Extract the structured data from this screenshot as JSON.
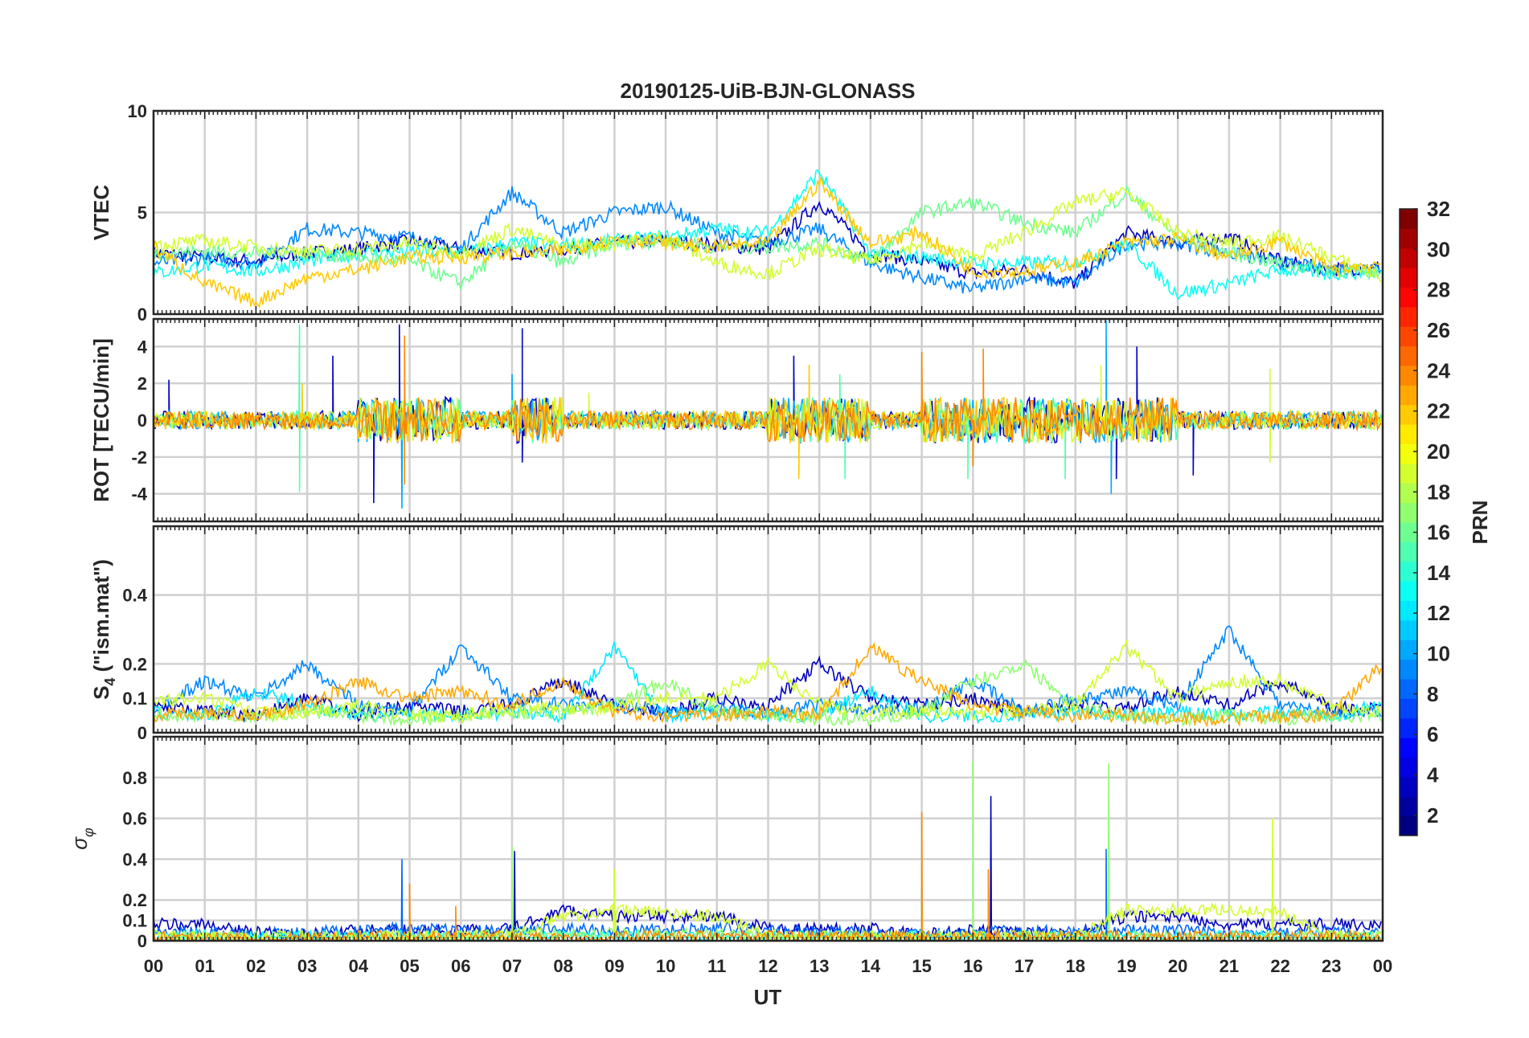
{
  "chart_data": {
    "type": "line",
    "title": "20190125-UiB-BJN-GLONASS",
    "xlabel": "UT",
    "x_ticks": [
      "00",
      "01",
      "02",
      "03",
      "04",
      "05",
      "06",
      "07",
      "08",
      "09",
      "10",
      "11",
      "12",
      "13",
      "14",
      "15",
      "16",
      "17",
      "18",
      "19",
      "20",
      "21",
      "22",
      "23",
      "00"
    ],
    "xlim": [
      0,
      24
    ],
    "grid": true,
    "colorbar": {
      "label": "PRN",
      "range": [
        1,
        32
      ],
      "ticks": [
        "2",
        "4",
        "6",
        "8",
        "10",
        "12",
        "14",
        "16",
        "18",
        "20",
        "22",
        "24",
        "26",
        "28",
        "30",
        "32"
      ],
      "colormap": "jet",
      "placement": "right"
    },
    "panels": [
      {
        "ylabel": "VTEC",
        "ylim": [
          0,
          10
        ],
        "yticks": [
          0,
          5,
          10
        ],
        "ytick_labels": [
          "0",
          "5",
          "10"
        ],
        "noise": 0.35,
        "series": [
          {
            "prn": 3,
            "values": [
              3,
              2.8,
              2.6,
              3,
              3.2,
              3.6,
              3.2,
              3,
              3.2,
              3.5,
              3.6,
              3.4,
              3.2,
              5.5,
              3,
              2.6,
              2,
              2.2,
              1.5,
              4,
              3.5,
              3.8,
              2.6,
              2.2,
              2.3
            ]
          },
          {
            "prn": 9,
            "values": [
              2.5,
              2.8,
              2.5,
              4.2,
              4,
              3.8,
              3.2,
              6,
              4,
              5,
              5.3,
              4,
              3.5,
              4.2,
              2.5,
              1.8,
              1.2,
              1.8,
              1.5,
              3.5,
              3.5,
              3,
              2.5,
              2.2,
              2.4
            ]
          },
          {
            "prn": 13,
            "values": [
              2,
              2.4,
              2.1,
              2.6,
              3,
              3.1,
              3,
              3.5,
              3.4,
              3.6,
              3.8,
              4.2,
              4,
              7,
              3,
              2.8,
              2.5,
              2.5,
              2.6,
              3.5,
              1,
              1.5,
              2.2,
              2,
              2.1
            ]
          },
          {
            "prn": 16,
            "values": [
              3,
              3.1,
              3,
              3,
              2.8,
              2.6,
              1.5,
              3.5,
              2.5,
              3.5,
              3.6,
              3.3,
              3.3,
              3.5,
              2.6,
              5,
              5.5,
              4.5,
              4,
              6,
              3.8,
              3,
              2.5,
              2.2,
              2
            ]
          },
          {
            "prn": 19,
            "values": [
              3.4,
              3.6,
              3.3,
              3.1,
              3.2,
              3.5,
              3,
              4.2,
              3.3,
              3.5,
              3.8,
              2.5,
              2,
              3.2,
              2.6,
              3.5,
              2.8,
              4,
              5.5,
              6,
              4,
              3.5,
              3.8,
              2.8,
              1.8
            ]
          },
          {
            "prn": 22,
            "values": [
              3.3,
              1.5,
              0.6,
              1.8,
              2.2,
              2.8,
              2.8,
              3,
              3.1,
              3.7,
              3.5,
              3.3,
              3.5,
              6.5,
              3.5,
              4,
              2.1,
              2.1,
              2.5,
              3.5,
              3.7,
              2.8,
              3.6,
              2.2,
              2.5
            ]
          }
        ]
      },
      {
        "ylabel": "ROT [TECU/min]",
        "ylim": [
          -5.5,
          5.5
        ],
        "yticks": [
          -4,
          -2,
          0,
          2,
          4
        ],
        "ytick_labels": [
          "-4",
          "-2",
          "0",
          "2",
          "4"
        ],
        "noise": 0.5,
        "series": [
          {
            "prn": 3,
            "values": [
              0,
              0,
              0,
              0,
              0,
              0,
              0,
              0,
              0,
              0,
              0,
              0,
              0,
              0,
              0,
              0,
              0,
              0,
              0,
              0,
              0,
              0,
              0,
              0,
              0
            ],
            "spikes": [
              [
                0.3,
                2.2
              ],
              [
                3.5,
                3.5
              ],
              [
                4.3,
                -4.5
              ],
              [
                4.8,
                5.2
              ],
              [
                7.2,
                5
              ],
              [
                7.2,
                -2.3
              ],
              [
                12.5,
                3.5
              ],
              [
                18.8,
                -3.2
              ],
              [
                19.2,
                4
              ],
              [
                20.3,
                -3
              ]
            ]
          },
          {
            "prn": 10,
            "values": [
              0,
              0,
              0,
              0,
              0,
              0,
              0,
              0,
              0,
              0,
              0,
              0,
              0,
              0,
              0,
              0,
              0,
              0,
              0,
              0,
              0,
              0,
              0,
              0,
              0
            ],
            "spikes": [
              [
                4.85,
                -4.8
              ],
              [
                18.6,
                5.4
              ],
              [
                18.7,
                -4
              ],
              [
                7,
                2.5
              ]
            ]
          },
          {
            "prn": 15,
            "values": [
              0,
              0,
              0,
              0,
              0,
              0,
              0,
              0,
              0,
              0,
              0,
              0,
              0,
              0,
              0,
              0,
              0,
              0,
              0,
              0,
              0,
              0,
              0,
              0,
              0
            ],
            "spikes": [
              [
                2.85,
                5.2
              ],
              [
                2.85,
                -3.9
              ],
              [
                13.4,
                2.5
              ],
              [
                15.9,
                -3.2
              ],
              [
                17.8,
                -3.2
              ],
              [
                13.5,
                -3.2
              ]
            ]
          },
          {
            "prn": 19,
            "values": [
              0,
              0,
              0,
              0,
              0,
              0,
              0,
              0,
              0,
              0,
              0,
              0,
              0,
              0,
              0,
              0,
              0,
              0,
              0,
              0,
              0,
              0,
              0,
              0,
              0
            ],
            "spikes": [
              [
                8.5,
                1.5
              ],
              [
                18.5,
                3
              ],
              [
                21.8,
                2.8
              ],
              [
                21.8,
                -2.3
              ]
            ]
          },
          {
            "prn": 22,
            "values": [
              0,
              0,
              0,
              0,
              0,
              0,
              0,
              0,
              0,
              0,
              0,
              0,
              0,
              0,
              0,
              0,
              0,
              0,
              0,
              0,
              0,
              0,
              0,
              0,
              0
            ],
            "spikes": [
              [
                12.6,
                -3.2
              ],
              [
                12.8,
                3
              ],
              [
                2.9,
                2
              ]
            ]
          },
          {
            "prn": 24,
            "values": [
              0,
              0,
              0,
              0,
              0,
              0,
              0,
              0,
              0,
              0,
              0,
              0,
              0,
              0,
              0,
              0,
              0,
              0,
              0,
              0,
              0,
              0,
              0,
              0,
              0
            ],
            "spikes": [
              [
                4.9,
                -3.5
              ],
              [
                4.9,
                4.6
              ],
              [
                15,
                3.7
              ],
              [
                16.2,
                3.9
              ],
              [
                16,
                -2.5
              ]
            ]
          }
        ]
      },
      {
        "ylabel": "S4 (\"ism.mat\")",
        "ylim": [
          0,
          0.6
        ],
        "yticks": [
          0,
          0.1,
          0.2,
          0.4
        ],
        "ytick_labels": [
          "0",
          "0.1",
          "0.2",
          "0.4"
        ],
        "noise": 0.02,
        "series": [
          {
            "prn": 3,
            "values": [
              0.08,
              0.06,
              0.05,
              0.1,
              0.05,
              0.08,
              0.06,
              0.08,
              0.15,
              0.08,
              0.06,
              0.1,
              0.08,
              0.2,
              0.1,
              0.08,
              0.1,
              0.06,
              0.08,
              0.07,
              0.12,
              0.08,
              0.15,
              0.07,
              0.07
            ]
          },
          {
            "prn": 9,
            "values": [
              0.07,
              0.15,
              0.1,
              0.2,
              0.08,
              0.06,
              0.25,
              0.1,
              0.08,
              0.08,
              0.06,
              0.07,
              0.06,
              0.08,
              0.06,
              0.07,
              0.15,
              0.06,
              0.1,
              0.12,
              0.08,
              0.3,
              0.08,
              0.06,
              0.06
            ]
          },
          {
            "prn": 12,
            "values": [
              0.06,
              0.05,
              0.12,
              0.08,
              0.05,
              0.05,
              0.05,
              0.06,
              0.05,
              0.25,
              0.05,
              0.06,
              0.05,
              0.05,
              0.12,
              0.05,
              0.05,
              0.05,
              0.06,
              0.05,
              0.06,
              0.05,
              0.06,
              0.05,
              0.08
            ]
          },
          {
            "prn": 17,
            "values": [
              0.05,
              0.05,
              0.05,
              0.06,
              0.05,
              0.04,
              0.05,
              0.06,
              0.06,
              0.08,
              0.15,
              0.06,
              0.05,
              0.04,
              0.04,
              0.06,
              0.15,
              0.2,
              0.08,
              0.05,
              0.04,
              0.05,
              0.04,
              0.05,
              0.05
            ]
          },
          {
            "prn": 19,
            "values": [
              0.09,
              0.1,
              0.06,
              0.05,
              0.08,
              0.05,
              0.05,
              0.07,
              0.07,
              0.07,
              0.1,
              0.1,
              0.2,
              0.08,
              0.06,
              0.06,
              0.06,
              0.06,
              0.08,
              0.25,
              0.1,
              0.15,
              0.15,
              0.08,
              0.06
            ]
          },
          {
            "prn": 23,
            "values": [
              0.05,
              0.06,
              0.05,
              0.08,
              0.15,
              0.1,
              0.12,
              0.08,
              0.15,
              0.06,
              0.05,
              0.05,
              0.06,
              0.05,
              0.25,
              0.15,
              0.08,
              0.06,
              0.05,
              0.05,
              0.04,
              0.04,
              0.05,
              0.05,
              0.2
            ]
          }
        ]
      },
      {
        "ylabel": "σφ",
        "ylim": [
          0,
          1
        ],
        "yticks": [
          0,
          0.1,
          0.2,
          0.4,
          0.6,
          0.8
        ],
        "ytick_labels": [
          "0",
          "0.1",
          "0.2",
          "0.4",
          "0.6",
          "0.8"
        ],
        "noise": 0.03,
        "series": [
          {
            "prn": 3,
            "values": [
              0.08,
              0.08,
              0.04,
              0.03,
              0.05,
              0.05,
              0.05,
              0.06,
              0.15,
              0.12,
              0.12,
              0.12,
              0.06,
              0.06,
              0.06,
              0.03,
              0.05,
              0.04,
              0.03,
              0.12,
              0.12,
              0.08,
              0.08,
              0.08,
              0.08
            ],
            "spikes": [
              [
                7.05,
                0.44
              ],
              [
                16.35,
                0.71
              ]
            ]
          },
          {
            "prn": 8,
            "values": [
              0.04,
              0.04,
              0.03,
              0.04,
              0.05,
              0.06,
              0.05,
              0.05,
              0.06,
              0.05,
              0.05,
              0.06,
              0.05,
              0.04,
              0.04,
              0.03,
              0.04,
              0.05,
              0.04,
              0.05,
              0.05,
              0.04,
              0.04,
              0.04,
              0.04
            ],
            "spikes": [
              [
                4.85,
                0.4
              ],
              [
                18.6,
                0.45
              ]
            ]
          },
          {
            "prn": 13,
            "values": [
              0.02,
              0.02,
              0.02,
              0.02,
              0.02,
              0.02,
              0.02,
              0.02,
              0.02,
              0.02,
              0.02,
              0.02,
              0.02,
              0.02,
              0.02,
              0.02,
              0.02,
              0.02,
              0.02,
              0.02,
              0.02,
              0.02,
              0.02,
              0.02,
              0.02
            ],
            "spikes": [
              [
                15,
                0.25
              ]
            ]
          },
          {
            "prn": 17,
            "values": [
              0.02,
              0.02,
              0.02,
              0.02,
              0.02,
              0.02,
              0.02,
              0.03,
              0.03,
              0.03,
              0.03,
              0.03,
              0.02,
              0.02,
              0.02,
              0.02,
              0.02,
              0.02,
              0.02,
              0.02,
              0.02,
              0.02,
              0.02,
              0.02,
              0.02
            ],
            "spikes": [
              [
                16,
                0.88
              ],
              [
                18.65,
                0.87
              ],
              [
                7,
                0.46
              ]
            ]
          },
          {
            "prn": 19,
            "values": [
              0.02,
              0.02,
              0.02,
              0.02,
              0.02,
              0.02,
              0.02,
              0.03,
              0.12,
              0.15,
              0.14,
              0.12,
              0.03,
              0.02,
              0.02,
              0.02,
              0.02,
              0.02,
              0.02,
              0.15,
              0.15,
              0.15,
              0.14,
              0.02,
              0.02
            ],
            "spikes": [
              [
                21.85,
                0.6
              ],
              [
                9,
                0.35
              ]
            ]
          },
          {
            "prn": 24,
            "values": [
              0.02,
              0.02,
              0.01,
              0.01,
              0.02,
              0.02,
              0.02,
              0.02,
              0.02,
              0.02,
              0.02,
              0.02,
              0.02,
              0.02,
              0.02,
              0.02,
              0.02,
              0.02,
              0.02,
              0.02,
              0.02,
              0.02,
              0.02,
              0.02,
              0.02
            ],
            "spikes": [
              [
                15,
                0.63
              ],
              [
                16.3,
                0.35
              ],
              [
                5,
                0.28
              ],
              [
                5.9,
                0.17
              ]
            ]
          }
        ]
      }
    ]
  }
}
